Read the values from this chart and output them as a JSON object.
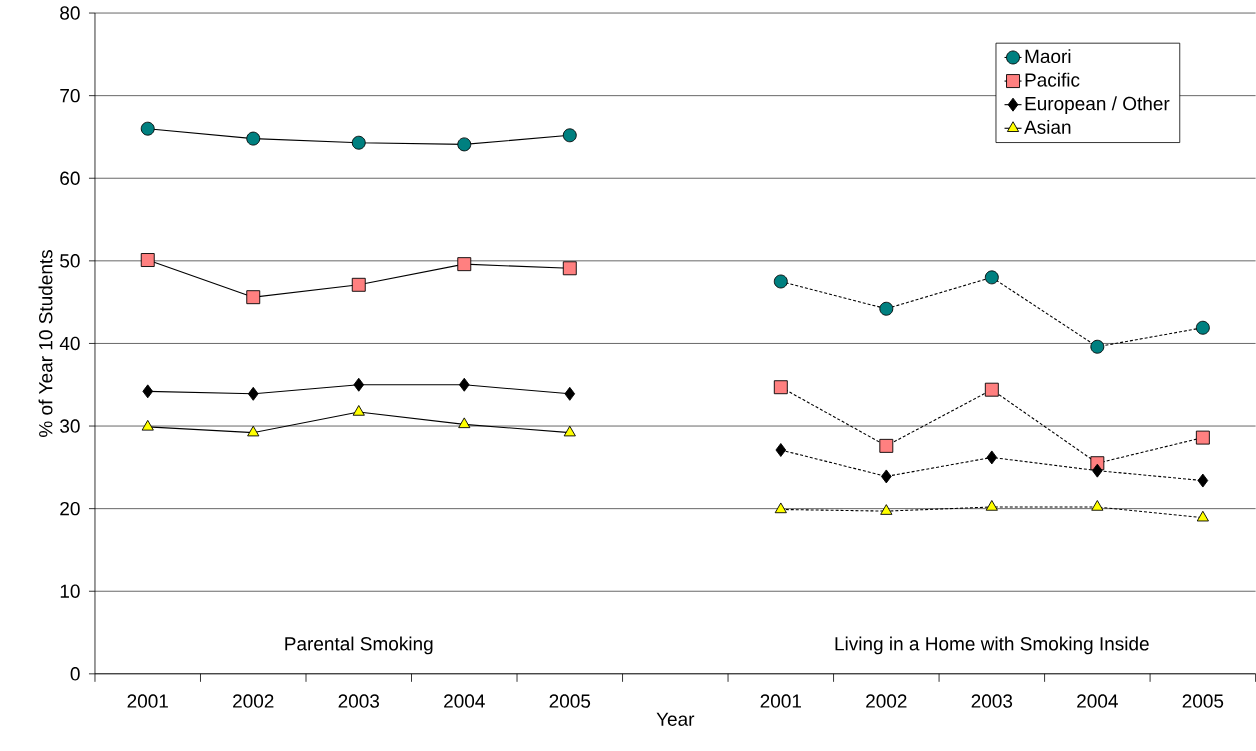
{
  "chart_data": {
    "type": "line",
    "xlabel": "Year",
    "ylabel": "% of Year 10 Students",
    "categories": [
      "2001",
      "2002",
      "2003",
      "2004",
      "2005",
      null,
      "2001",
      "2002",
      "2003",
      "2004",
      "2005"
    ],
    "ylim": [
      0,
      80
    ],
    "yticks": [
      0,
      10,
      20,
      30,
      40,
      50,
      60,
      70,
      80
    ],
    "grid": "y",
    "legend": "top right",
    "annotations": [
      "Parental Smoking",
      "Living in a Home with Smoking Inside"
    ],
    "series": [
      {
        "name": "Maori",
        "color": "#008080",
        "marker": "circle",
        "line_style": "solid",
        "values": [
          66.0,
          64.8,
          64.3,
          64.1,
          65.2,
          null,
          null,
          null,
          null,
          null,
          null
        ]
      },
      {
        "name": "Pacific",
        "color": "#ff8080",
        "marker": "square",
        "line_style": "solid",
        "values": [
          50.1,
          45.6,
          47.1,
          49.6,
          49.1,
          null,
          null,
          null,
          null,
          null,
          null
        ]
      },
      {
        "name": "European / Other",
        "color": "#000000",
        "marker": "diamond",
        "line_style": "solid",
        "values": [
          34.2,
          33.9,
          35.0,
          35.0,
          33.9,
          null,
          null,
          null,
          null,
          null,
          null
        ]
      },
      {
        "name": "Asian",
        "color": "#ffff00",
        "marker": "triangle",
        "line_style": "solid",
        "values": [
          29.9,
          29.2,
          31.7,
          30.2,
          29.2,
          null,
          null,
          null,
          null,
          null,
          null
        ]
      },
      {
        "color": "#008080",
        "marker": "circle",
        "line_style": "dotted",
        "values": [
          null,
          null,
          null,
          null,
          null,
          null,
          47.5,
          44.2,
          48.0,
          39.6,
          41.9
        ]
      },
      {
        "color": "#ff8080",
        "marker": "square",
        "line_style": "dotted",
        "values": [
          null,
          null,
          null,
          null,
          null,
          null,
          34.7,
          27.6,
          34.4,
          25.5,
          28.6
        ]
      },
      {
        "color": "#000000",
        "marker": "diamond",
        "line_style": "dotted",
        "values": [
          null,
          null,
          null,
          null,
          null,
          null,
          27.1,
          23.9,
          26.2,
          24.6,
          23.4
        ]
      },
      {
        "color": "#ffff00",
        "marker": "triangle",
        "line_style": "dotted",
        "values": [
          null,
          null,
          null,
          null,
          null,
          null,
          19.9,
          19.7,
          20.2,
          20.2,
          18.9
        ]
      }
    ]
  }
}
